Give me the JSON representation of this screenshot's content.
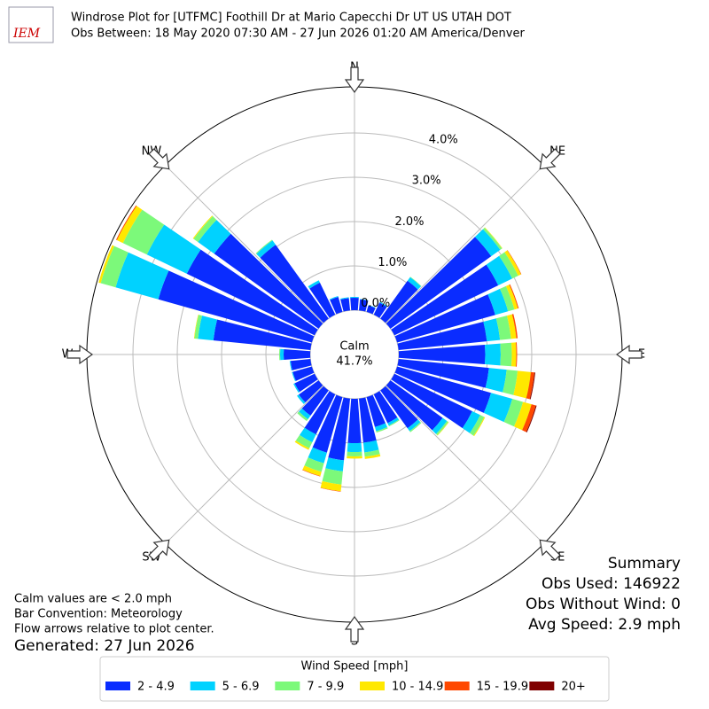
{
  "chart_data": {
    "type": "windrose",
    "title": "Windrose Plot for [UTFMC] Foothill Dr at Mario Capecchi Dr UT US UTAH DOT",
    "subtitle": "Obs Between: 18 May 2020 07:30 AM - 27 Jun 2026 01:20 AM America/Denver",
    "logo": "IEM",
    "compass_labels": [
      "N",
      "NE",
      "E",
      "SE",
      "S",
      "SW",
      "W",
      "NW"
    ],
    "x": [
      0,
      10,
      20,
      30,
      40,
      50,
      60,
      70,
      80,
      90,
      100,
      110,
      120,
      130,
      140,
      150,
      160,
      170,
      180,
      190,
      200,
      210,
      220,
      230,
      240,
      250,
      260,
      270,
      280,
      290,
      300,
      310,
      320,
      330,
      340,
      350
    ],
    "ylim": [
      0,
      5.04
    ],
    "yticks": [
      {
        "value": 0,
        "label": "0.0%"
      },
      {
        "value": 1,
        "label": "1.0%"
      },
      {
        "value": 2,
        "label": "2.0%"
      },
      {
        "value": 3,
        "label": "3.0%"
      },
      {
        "value": 4,
        "label": "4.0%"
      }
    ],
    "grid": true,
    "calm": {
      "label": "Calm",
      "value": 41.7,
      "value_label": "41.7%"
    },
    "legend_title": "Wind Speed [mph]",
    "series": [
      {
        "name": "2 - 4.9",
        "color": "#0a2cff",
        "values": [
          0.28,
          0.25,
          0.15,
          0.3,
          1.05,
          2.8,
          2.6,
          2.3,
          2.0,
          1.95,
          2.05,
          2.2,
          1.95,
          1.45,
          1.05,
          0.72,
          0.7,
          1.0,
          1.0,
          1.4,
          1.3,
          1.0,
          0.7,
          0.55,
          0.5,
          0.45,
          0.45,
          0.6,
          2.2,
          3.6,
          3.2,
          2.9,
          2.05,
          0.8,
          0.35,
          0.28
        ]
      },
      {
        "name": "5 - 6.9",
        "color": "#00d2ff",
        "values": [
          0.02,
          0.01,
          0.01,
          0.02,
          0.1,
          0.25,
          0.35,
          0.3,
          0.3,
          0.35,
          0.4,
          0.5,
          0.2,
          0.12,
          0.08,
          0.06,
          0.1,
          0.22,
          0.2,
          0.25,
          0.25,
          0.2,
          0.1,
          0.05,
          0.03,
          0.02,
          0.02,
          0.08,
          0.35,
          1.0,
          1.0,
          0.45,
          0.12,
          0.06,
          0.02,
          0.02
        ]
      },
      {
        "name": "7 - 9.9",
        "color": "#7cf97a",
        "values": [
          0,
          0,
          0,
          0,
          0.01,
          0.05,
          0.15,
          0.15,
          0.25,
          0.25,
          0.25,
          0.25,
          0.1,
          0.04,
          0.03,
          0.02,
          0.03,
          0.1,
          0.1,
          0.3,
          0.2,
          0.15,
          0.05,
          0,
          0,
          0,
          0,
          0.02,
          0.08,
          0.35,
          0.6,
          0.12,
          0.02,
          0,
          0,
          0
        ]
      },
      {
        "name": "10 - 14.9",
        "color": "#ffe800",
        "values": [
          0,
          0,
          0,
          0,
          0,
          0.01,
          0.07,
          0.08,
          0.12,
          0.1,
          0.3,
          0.2,
          0.02,
          0.01,
          0,
          0,
          0,
          0.05,
          0.05,
          0.15,
          0.1,
          0.04,
          0,
          0,
          0,
          0,
          0,
          0,
          0.01,
          0.05,
          0.15,
          0.02,
          0,
          0,
          0,
          0
        ]
      },
      {
        "name": "15 - 19.9",
        "color": "#ff4800",
        "values": [
          0,
          0,
          0,
          0,
          0,
          0,
          0.01,
          0.02,
          0.03,
          0.02,
          0.08,
          0.1,
          0,
          0,
          0,
          0,
          0,
          0,
          0,
          0.01,
          0.01,
          0,
          0,
          0,
          0,
          0,
          0,
          0,
          0,
          0,
          0.02,
          0,
          0,
          0,
          0,
          0
        ]
      },
      {
        "name": "20+",
        "color": "#7f0000",
        "values": [
          0,
          0,
          0,
          0,
          0,
          0,
          0,
          0,
          0,
          0,
          0.02,
          0.02,
          0,
          0,
          0,
          0,
          0,
          0,
          0,
          0,
          0,
          0,
          0,
          0,
          0,
          0,
          0,
          0,
          0,
          0,
          0,
          0,
          0,
          0,
          0,
          0
        ]
      }
    ],
    "notes": [
      "Calm values are < 2.0 mph",
      "Bar Convention: Meteorology",
      "Flow arrows relative to plot center."
    ],
    "generated": "Generated: 27 Jun 2026",
    "summary": {
      "title": "Summary",
      "lines": [
        "Obs Used: 146922",
        "Obs Without Wind: 0",
        "Avg Speed: 2.9 mph"
      ]
    }
  }
}
